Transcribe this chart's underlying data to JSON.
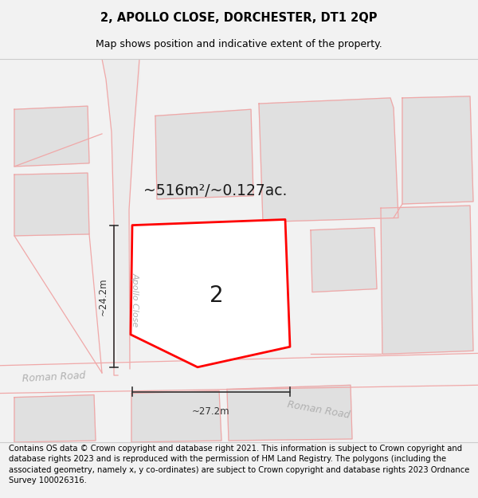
{
  "title": "2, APOLLO CLOSE, DORCHESTER, DT1 2QP",
  "subtitle": "Map shows position and indicative extent of the property.",
  "footer": "Contains OS data © Crown copyright and database right 2021. This information is subject to Crown copyright and database rights 2023 and is reproduced with the permission of HM Land Registry. The polygons (including the associated geometry, namely x, y co-ordinates) are subject to Crown copyright and database rights 2023 Ordnance Survey 100026316.",
  "bg_color": "#f2f2f2",
  "map_bg": "#ffffff",
  "plot_color": "#ff0000",
  "plot_fill": "#ffffff",
  "plot_label": "2",
  "area_label": "~516m²/~0.127ac.",
  "dim_height": "~24.2m",
  "dim_width": "~27.2m",
  "road_label_1": "Roman Road",
  "road_label_2": "Roman Road",
  "street_label": "Apollo Close",
  "title_fontsize": 10.5,
  "subtitle_fontsize": 9,
  "footer_fontsize": 7.2,
  "pink": "#f0a8a8",
  "light_gray_fill": "#e0e0e0",
  "road_text_color": "#b0b0b0",
  "dim_color": "#333333",
  "label_color": "#1a1a1a"
}
